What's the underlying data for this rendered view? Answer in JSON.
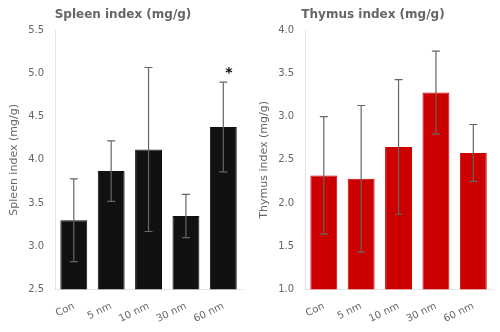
{
  "chart_data": [
    {
      "type": "bar",
      "title": "Spleen index (mg/g)",
      "ylabel": "Spleen index (mg/g)",
      "categories": [
        "Con",
        "5 nm",
        "10 nm",
        "30 nm",
        "60 nm"
      ],
      "values": [
        3.3,
        3.87,
        4.12,
        3.35,
        4.38
      ],
      "errors": [
        0.48,
        0.35,
        0.95,
        0.25,
        0.52
      ],
      "color": "#111111",
      "ylim": [
        2.5,
        5.5
      ],
      "yticks": [
        2.5,
        {
          "value": 3.0,
          "label": "3.0"
        },
        3.5,
        {
          "value": 4.0,
          "label": "4.0"
        },
        4.5,
        {
          "value": 5.0,
          "label": "5.0"
        },
        5.5
      ],
      "grid": false,
      "annotations": [
        {
          "text": "*",
          "category": "60 nm"
        }
      ]
    },
    {
      "type": "bar",
      "title": "Thymus index (mg/g)",
      "ylabel": "Thymus index (mg/g)",
      "categories": [
        "Con",
        "5 nm",
        "10 nm",
        "30 nm",
        "60 nm"
      ],
      "values": [
        2.32,
        2.28,
        2.65,
        3.28,
        2.58
      ],
      "errors": [
        0.68,
        0.85,
        0.78,
        0.48,
        0.33
      ],
      "color": "#cc0000",
      "ylim": [
        1.0,
        4.0
      ],
      "yticks": [
        {
          "value": 1.0,
          "label": "1.0"
        },
        1.5,
        {
          "value": 2.0,
          "label": "2.0"
        },
        2.5,
        {
          "value": 3.0,
          "label": "3.0"
        },
        3.5,
        {
          "value": 4.0,
          "label": "4.0"
        }
      ],
      "grid": false
    }
  ]
}
